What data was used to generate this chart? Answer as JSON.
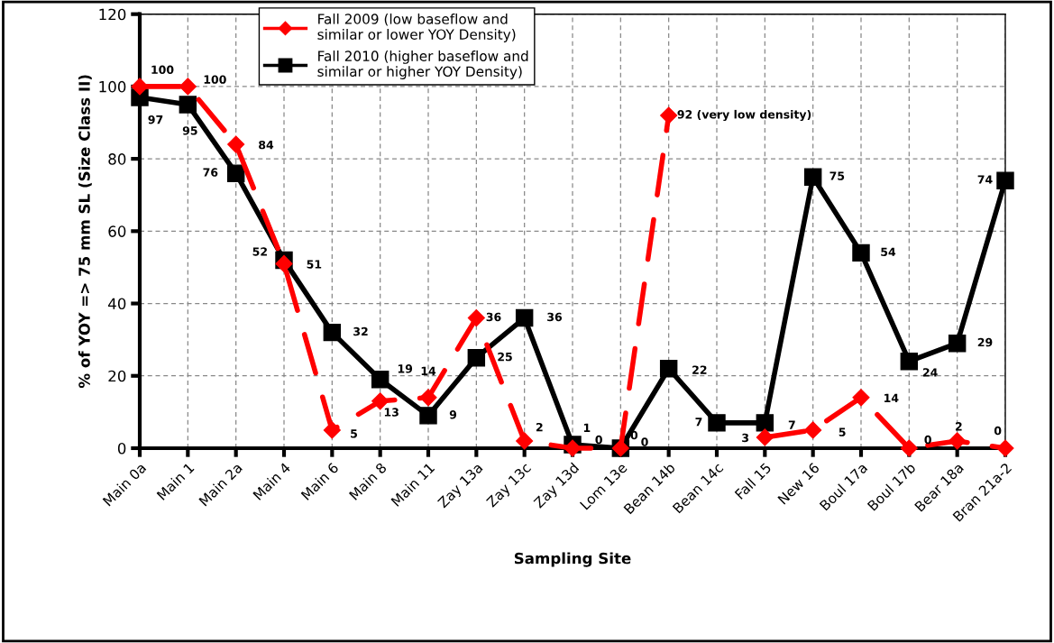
{
  "chart_data": {
    "type": "line",
    "categories": [
      "Main 0a",
      "Main 1",
      "Main 2a",
      "Main 4",
      "Main 6",
      "Main 8",
      "Main 11",
      "Zay 13a",
      "Zay 13c",
      "Zay 13d",
      "Lom 13e",
      "Bean 14b",
      "Bean 14c",
      "Fall 15",
      "New 16",
      "Boul 17a",
      "Boul 17b",
      "Bear 18a",
      "Bran 21a-2"
    ],
    "series": [
      {
        "name": "Fall 2009 (low baseflow and\nsimilar or lower YOY Density)",
        "color": "#ff0000",
        "marker": "diamond",
        "line_style": "dashed",
        "values": [
          100,
          100,
          84,
          51,
          5,
          13,
          14,
          36,
          2,
          0,
          0,
          92,
          null,
          3,
          5,
          14,
          0,
          2,
          0
        ],
        "value_labels": [
          "100",
          "100",
          "84",
          "51",
          "5",
          "13",
          "14",
          "36",
          "2",
          "0",
          "0",
          "92 (very low density)",
          null,
          "3",
          "5",
          "14",
          "0",
          "2",
          "0"
        ]
      },
      {
        "name": "Fall 2010 (higher baseflow and\nsimilar or higher YOY Density)",
        "color": "#000000",
        "marker": "square",
        "line_style": "solid",
        "values": [
          97,
          95,
          76,
          52,
          32,
          19,
          9,
          25,
          36,
          1,
          0,
          22,
          7,
          7,
          75,
          54,
          24,
          29,
          74
        ],
        "value_labels": [
          "97",
          "95",
          "76",
          "52",
          "32",
          "19",
          "9",
          "25",
          "36",
          "1",
          "0",
          "22",
          "7",
          "7",
          "75",
          "54",
          "24",
          "29",
          "74"
        ]
      }
    ],
    "xlabel": "Sampling Site",
    "ylabel": "% of YOY => 75 mm SL (Size Class II)",
    "ylim": [
      0,
      120
    ],
    "yticks": [
      0,
      20,
      40,
      60,
      80,
      100,
      120
    ],
    "grid": true,
    "legend": "top"
  }
}
